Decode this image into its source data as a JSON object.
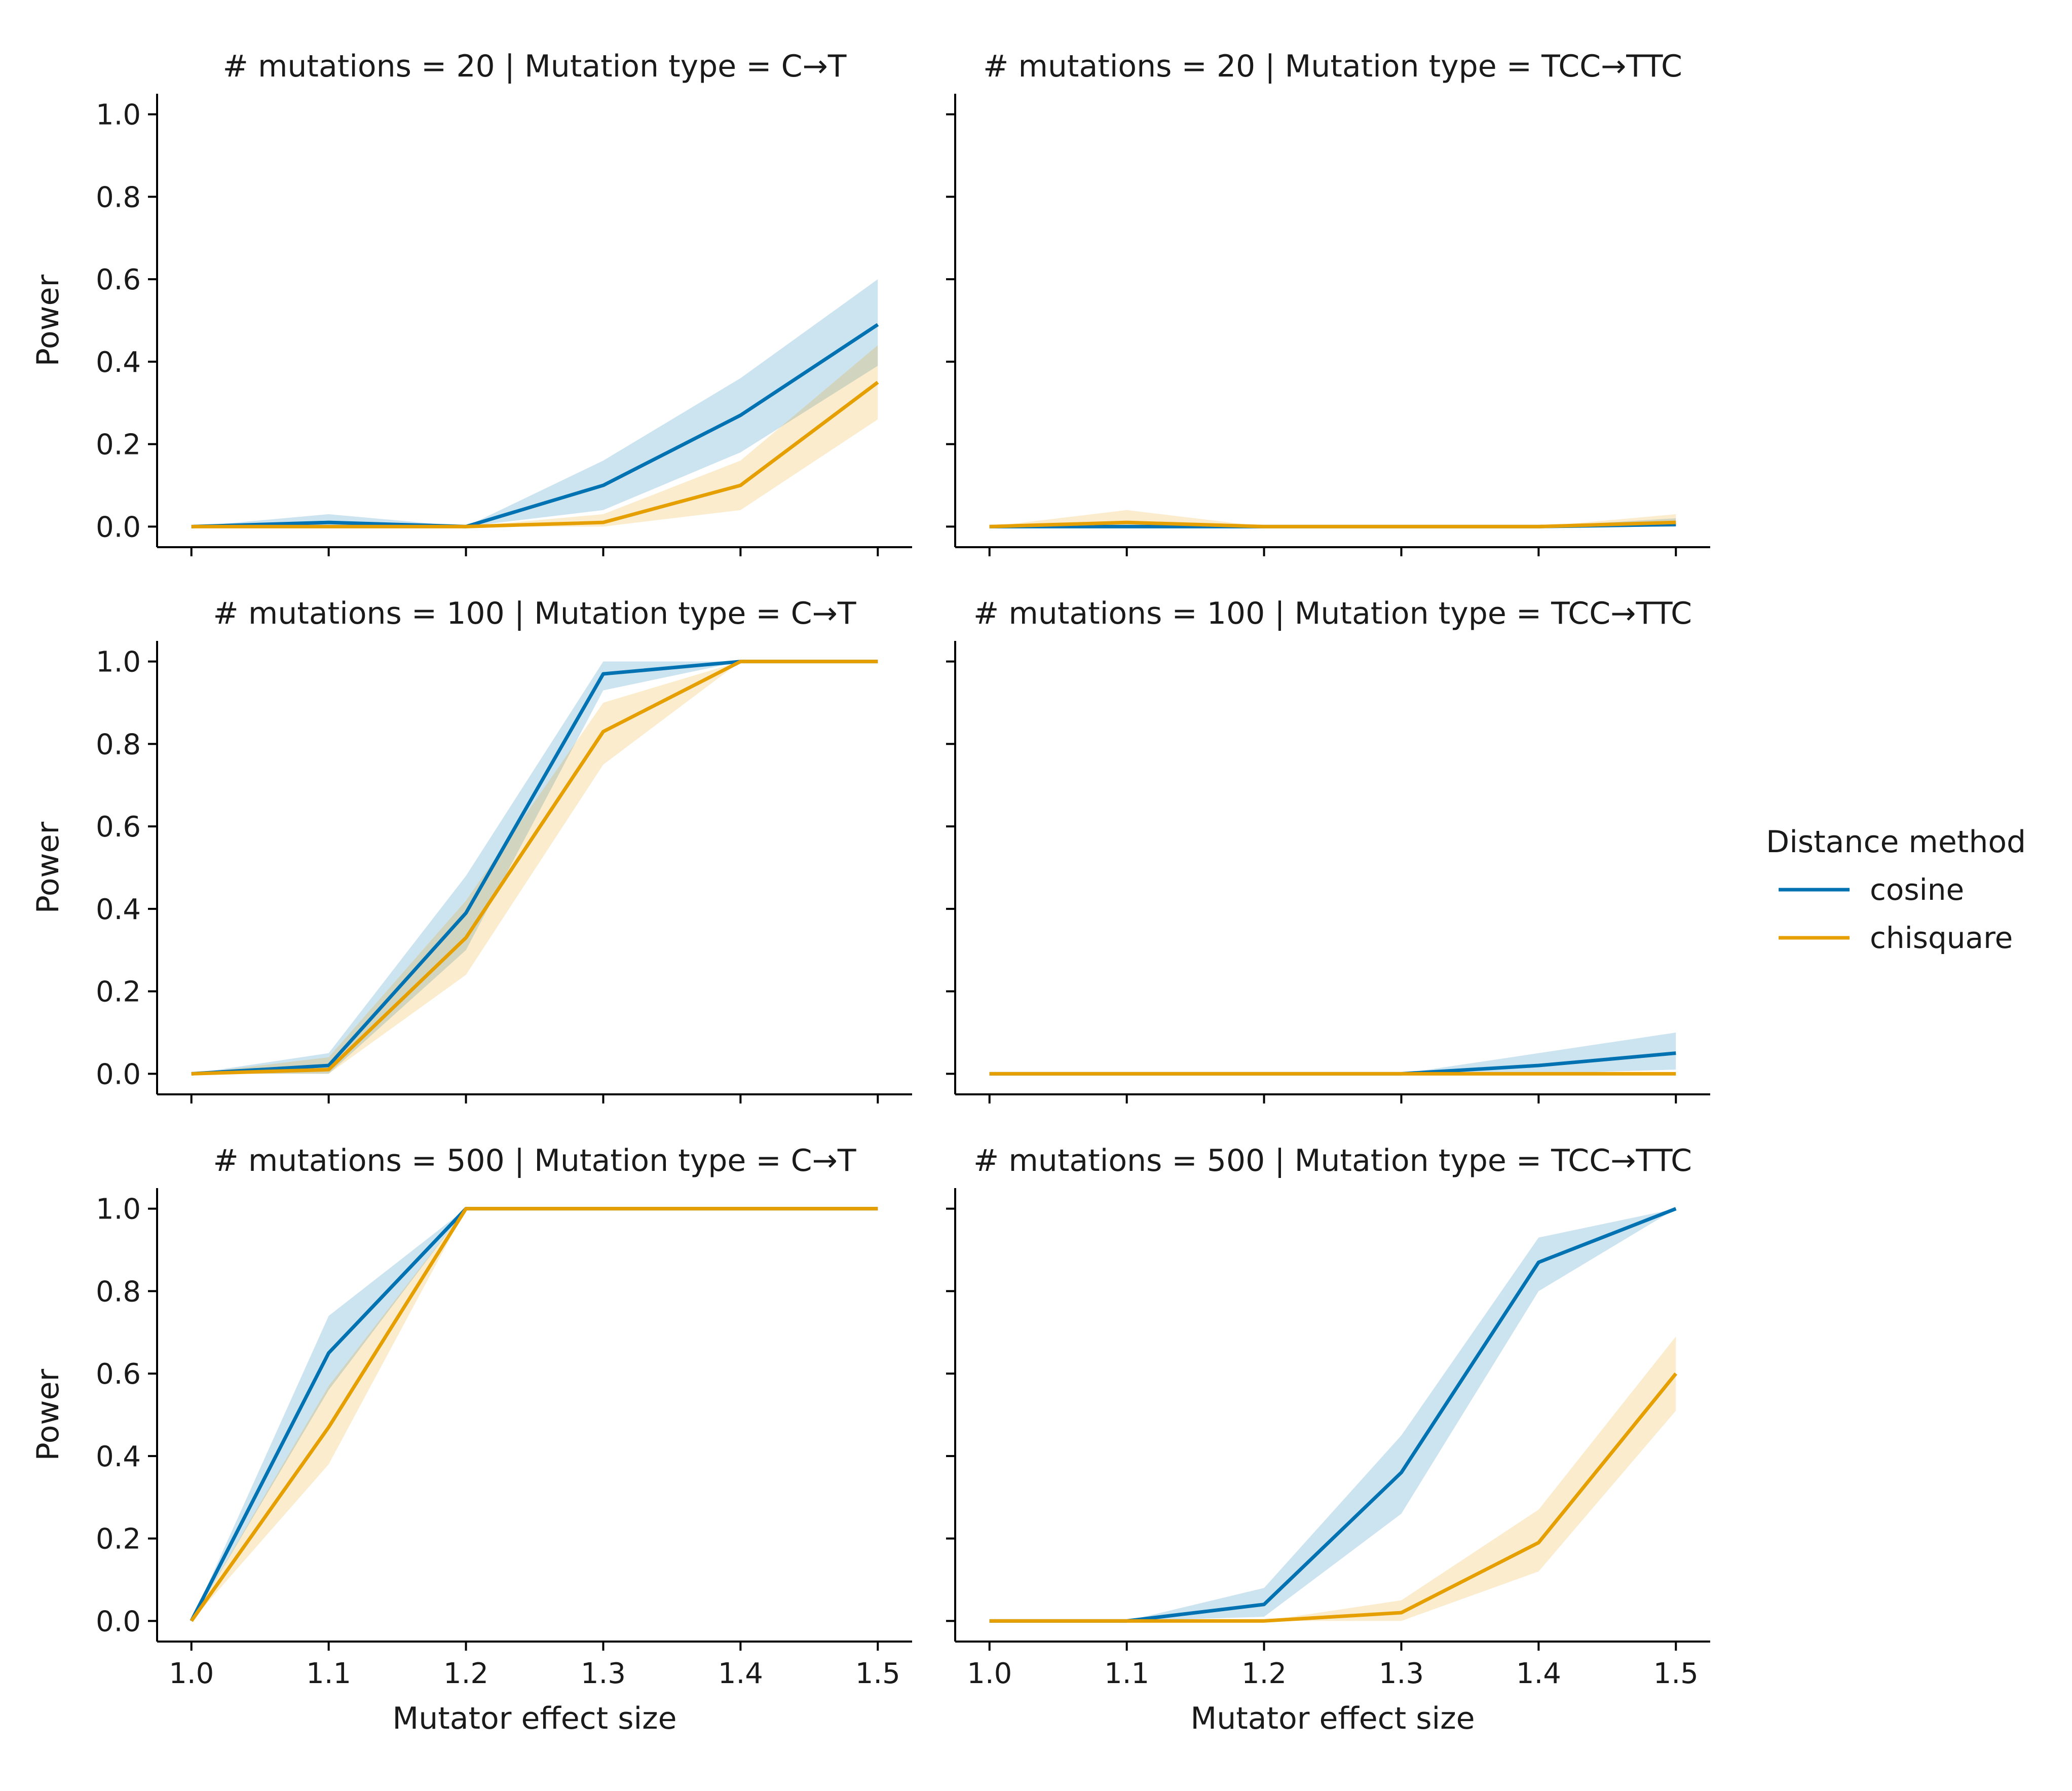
{
  "figure": {
    "legend": {
      "title": "Distance method",
      "placement": "right-center",
      "entries": [
        {
          "name": "cosine",
          "color": "#0072B2"
        },
        {
          "name": "chisquare",
          "color": "#E69F00"
        }
      ]
    },
    "ylabel": "Power",
    "xlabel": "Mutator effect size"
  },
  "chart_data": [
    {
      "type": "line",
      "title": "# mutations = 20 | Mutation type = C→T",
      "x": [
        1.0,
        1.1,
        1.2,
        1.3,
        1.4,
        1.5
      ],
      "xlim": [
        0.975,
        1.525
      ],
      "ylim": [
        -0.05,
        1.05
      ],
      "yticks": [
        0.0,
        0.2,
        0.4,
        0.6,
        0.8,
        1.0
      ],
      "xticks": [
        1.0,
        1.1,
        1.2,
        1.3,
        1.4,
        1.5
      ],
      "ytick_labels_shown": true,
      "xtick_labels_shown": false,
      "ylabel": "Power",
      "xlabel": "",
      "series": [
        {
          "name": "cosine",
          "color": "#0072B2",
          "values": [
            0.0,
            0.01,
            0.0,
            0.1,
            0.27,
            0.49
          ],
          "lower": [
            0.0,
            0.0,
            0.0,
            0.04,
            0.18,
            0.39
          ],
          "upper": [
            0.0,
            0.03,
            0.0,
            0.16,
            0.36,
            0.6
          ]
        },
        {
          "name": "chisquare",
          "color": "#E69F00",
          "values": [
            0.0,
            0.0,
            0.0,
            0.01,
            0.1,
            0.35
          ],
          "lower": [
            0.0,
            0.0,
            0.0,
            0.0,
            0.04,
            0.26
          ],
          "upper": [
            0.0,
            0.0,
            0.0,
            0.03,
            0.16,
            0.44
          ]
        }
      ]
    },
    {
      "type": "line",
      "title": "# mutations = 20 | Mutation type = TCC→TTC",
      "x": [
        1.0,
        1.1,
        1.2,
        1.3,
        1.4,
        1.5
      ],
      "xlim": [
        0.975,
        1.525
      ],
      "ylim": [
        -0.05,
        1.05
      ],
      "yticks": [
        0.0,
        0.2,
        0.4,
        0.6,
        0.8,
        1.0
      ],
      "xticks": [
        1.0,
        1.1,
        1.2,
        1.3,
        1.4,
        1.5
      ],
      "ytick_labels_shown": false,
      "xtick_labels_shown": false,
      "ylabel": "",
      "xlabel": "",
      "series": [
        {
          "name": "cosine",
          "color": "#0072B2",
          "values": [
            0.0,
            0.0,
            0.0,
            0.0,
            0.0,
            0.005
          ],
          "lower": [
            0.0,
            0.0,
            0.0,
            0.0,
            0.0,
            0.0
          ],
          "upper": [
            0.0,
            0.0,
            0.0,
            0.0,
            0.0,
            0.02
          ]
        },
        {
          "name": "chisquare",
          "color": "#E69F00",
          "values": [
            0.0,
            0.01,
            0.0,
            0.0,
            0.0,
            0.01
          ],
          "lower": [
            0.0,
            0.0,
            0.0,
            0.0,
            0.0,
            0.0
          ],
          "upper": [
            0.0,
            0.04,
            0.0,
            0.0,
            0.0,
            0.03
          ]
        }
      ]
    },
    {
      "type": "line",
      "title": "# mutations = 100 | Mutation type = C→T",
      "x": [
        1.0,
        1.1,
        1.2,
        1.3,
        1.4,
        1.5
      ],
      "xlim": [
        0.975,
        1.525
      ],
      "ylim": [
        -0.05,
        1.05
      ],
      "yticks": [
        0.0,
        0.2,
        0.4,
        0.6,
        0.8,
        1.0
      ],
      "xticks": [
        1.0,
        1.1,
        1.2,
        1.3,
        1.4,
        1.5
      ],
      "ytick_labels_shown": true,
      "xtick_labels_shown": false,
      "ylabel": "Power",
      "xlabel": "",
      "series": [
        {
          "name": "cosine",
          "color": "#0072B2",
          "values": [
            0.0,
            0.02,
            0.39,
            0.97,
            1.0,
            1.0
          ],
          "lower": [
            0.0,
            0.0,
            0.3,
            0.93,
            1.0,
            1.0
          ],
          "upper": [
            0.0,
            0.05,
            0.48,
            1.0,
            1.0,
            1.0
          ]
        },
        {
          "name": "chisquare",
          "color": "#E69F00",
          "values": [
            0.0,
            0.01,
            0.33,
            0.83,
            1.0,
            1.0
          ],
          "lower": [
            0.0,
            0.0,
            0.24,
            0.75,
            1.0,
            1.0
          ],
          "upper": [
            0.0,
            0.04,
            0.42,
            0.9,
            1.0,
            1.0
          ]
        }
      ]
    },
    {
      "type": "line",
      "title": "# mutations = 100 | Mutation type = TCC→TTC",
      "x": [
        1.0,
        1.1,
        1.2,
        1.3,
        1.4,
        1.5
      ],
      "xlim": [
        0.975,
        1.525
      ],
      "ylim": [
        -0.05,
        1.05
      ],
      "yticks": [
        0.0,
        0.2,
        0.4,
        0.6,
        0.8,
        1.0
      ],
      "xticks": [
        1.0,
        1.1,
        1.2,
        1.3,
        1.4,
        1.5
      ],
      "ytick_labels_shown": false,
      "xtick_labels_shown": false,
      "ylabel": "",
      "xlabel": "",
      "series": [
        {
          "name": "cosine",
          "color": "#0072B2",
          "values": [
            0.0,
            0.0,
            0.0,
            0.0,
            0.02,
            0.05
          ],
          "lower": [
            0.0,
            0.0,
            0.0,
            0.0,
            0.0,
            0.01
          ],
          "upper": [
            0.0,
            0.0,
            0.0,
            0.0,
            0.05,
            0.1
          ]
        },
        {
          "name": "chisquare",
          "color": "#E69F00",
          "values": [
            0.0,
            0.0,
            0.0,
            0.0,
            0.0,
            0.0
          ],
          "lower": [
            0.0,
            0.0,
            0.0,
            0.0,
            0.0,
            0.0
          ],
          "upper": [
            0.0,
            0.0,
            0.0,
            0.0,
            0.0,
            0.0
          ]
        }
      ]
    },
    {
      "type": "line",
      "title": "# mutations = 500 | Mutation type = C→T",
      "x": [
        1.0,
        1.1,
        1.2,
        1.3,
        1.4,
        1.5
      ],
      "xlim": [
        0.975,
        1.525
      ],
      "ylim": [
        -0.05,
        1.05
      ],
      "yticks": [
        0.0,
        0.2,
        0.4,
        0.6,
        0.8,
        1.0
      ],
      "xticks": [
        1.0,
        1.1,
        1.2,
        1.3,
        1.4,
        1.5
      ],
      "ytick_labels_shown": true,
      "xtick_labels_shown": true,
      "ylabel": "Power",
      "xlabel": "Mutator effect size",
      "series": [
        {
          "name": "cosine",
          "color": "#0072B2",
          "values": [
            0.0,
            0.65,
            1.0,
            1.0,
            1.0,
            1.0
          ],
          "lower": [
            0.0,
            0.56,
            1.0,
            1.0,
            1.0,
            1.0
          ],
          "upper": [
            0.0,
            0.74,
            1.0,
            1.0,
            1.0,
            1.0
          ]
        },
        {
          "name": "chisquare",
          "color": "#E69F00",
          "values": [
            0.0,
            0.47,
            1.0,
            1.0,
            1.0,
            1.0
          ],
          "lower": [
            0.0,
            0.38,
            1.0,
            1.0,
            1.0,
            1.0
          ],
          "upper": [
            0.0,
            0.57,
            1.0,
            1.0,
            1.0,
            1.0
          ]
        }
      ]
    },
    {
      "type": "line",
      "title": "# mutations = 500 | Mutation type = TCC→TTC",
      "x": [
        1.0,
        1.1,
        1.2,
        1.3,
        1.4,
        1.5
      ],
      "xlim": [
        0.975,
        1.525
      ],
      "ylim": [
        -0.05,
        1.05
      ],
      "yticks": [
        0.0,
        0.2,
        0.4,
        0.6,
        0.8,
        1.0
      ],
      "xticks": [
        1.0,
        1.1,
        1.2,
        1.3,
        1.4,
        1.5
      ],
      "ytick_labels_shown": false,
      "xtick_labels_shown": true,
      "ylabel": "",
      "xlabel": "Mutator effect size",
      "series": [
        {
          "name": "cosine",
          "color": "#0072B2",
          "values": [
            0.0,
            0.0,
            0.04,
            0.36,
            0.87,
            1.0
          ],
          "lower": [
            0.0,
            0.0,
            0.01,
            0.26,
            0.8,
            1.0
          ],
          "upper": [
            0.0,
            0.0,
            0.08,
            0.45,
            0.93,
            1.0
          ]
        },
        {
          "name": "chisquare",
          "color": "#E69F00",
          "values": [
            0.0,
            0.0,
            0.0,
            0.02,
            0.19,
            0.6
          ],
          "lower": [
            0.0,
            0.0,
            0.0,
            0.0,
            0.12,
            0.51
          ],
          "upper": [
            0.0,
            0.0,
            0.0,
            0.05,
            0.27,
            0.69
          ]
        }
      ]
    }
  ]
}
